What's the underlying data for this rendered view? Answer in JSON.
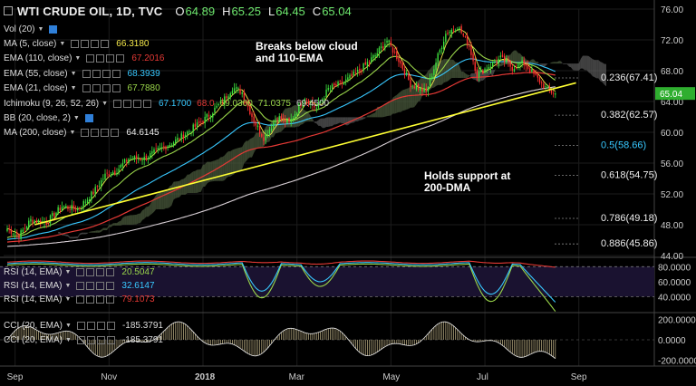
{
  "header": {
    "symbol": "WTI CRUDE OIL, 1D, TVC",
    "open_label": "O",
    "open": "64.89",
    "high_label": "H",
    "high": "65.25",
    "low_label": "L",
    "low": "64.45",
    "close_label": "C",
    "close": "65.04"
  },
  "indicators": [
    {
      "label": "Vol (20)",
      "value": "",
      "color": "#dddddd",
      "blue_box": true
    },
    {
      "label": "MA (5, close)",
      "value": "66.3180",
      "color": "#f5e84a"
    },
    {
      "label": "EMA (110, close)",
      "value": "67.2016",
      "color": "#e53935"
    },
    {
      "label": "EMA (55, close)",
      "value": "68.3939",
      "color": "#38c8ff"
    },
    {
      "label": "EMA (21, close)",
      "value": "67.7880",
      "color": "#9ad64a"
    },
    {
      "label": "Ichimoku (9, 26, 52, 26)",
      "value": "",
      "color": "#dddddd",
      "extra_values": [
        "67.1700",
        "68.0",
        "69.0300",
        "71.0375",
        "69.4500"
      ],
      "extra_colors": [
        "#38c8ff",
        "#e53935",
        "#9ad64a",
        "#9ad64a",
        "#cccccc"
      ]
    },
    {
      "label": "BB (20, close, 2)",
      "value": "",
      "color": "#dddddd",
      "blue_box": true
    },
    {
      "label": "MA (200, close)",
      "value": "64.6145",
      "color": "#eeeeee"
    }
  ],
  "annotations": {
    "top": [
      "Breaks below cloud",
      "and 110-EMA"
    ],
    "bottom": [
      "Holds support at",
      "200-DMA"
    ]
  },
  "price_badge": "65.04",
  "fibonacci": [
    {
      "label": "0.236(67.41)",
      "value": 67.41,
      "color": "#eeeeee"
    },
    {
      "label": "0.382(62.57)",
      "value": 62.57,
      "color": "#eeeeee"
    },
    {
      "label": "0.5(58.66)",
      "value": 58.66,
      "color": "#38c8ff"
    },
    {
      "label": "0.618(54.75)",
      "value": 54.75,
      "color": "#eeeeee"
    },
    {
      "label": "0.786(49.18)",
      "value": 49.18,
      "color": "#eeeeee"
    },
    {
      "label": "0.886(45.86)",
      "value": 45.86,
      "color": "#eeeeee"
    }
  ],
  "rsi_panel": {
    "rows": [
      {
        "label": "RSI (14, EMA)",
        "value": "20.5047",
        "color": "#9ad64a"
      },
      {
        "label": "RSI (14, EMA)",
        "value": "32.6147",
        "color": "#38c8ff"
      },
      {
        "label": "RSI (14, EMA)",
        "value": "79.1073",
        "color": "#e53935"
      }
    ],
    "axis_labels": [
      "80.0000",
      "60.0000",
      "40.0000"
    ]
  },
  "cci_panel": {
    "rows": [
      {
        "label": "CCI (20, EMA)",
        "value": "-185.3791",
        "color": "#dddddd"
      },
      {
        "label": "CCI (20, EMA)",
        "value": "-185.3791",
        "color": "#dddddd"
      }
    ],
    "axis_labels": [
      "200.0000",
      "0.0000",
      "-200.0000"
    ]
  },
  "chart_data": {
    "type": "candlestick",
    "title": "WTI CRUDE OIL, 1D, TVC",
    "ylim": [
      44,
      76
    ],
    "y_ticks": [
      "76.00",
      "72.00",
      "68.00",
      "64.00",
      "60.00",
      "56.00",
      "52.00",
      "48.00",
      "44.00"
    ],
    "y_tick_values": [
      76,
      72,
      68,
      64,
      60,
      56,
      52,
      48,
      44
    ],
    "x_ticks": [
      "Sep",
      "Nov",
      "2018",
      "Mar",
      "May",
      "Jul",
      "Sep"
    ],
    "x_tick_index": [
      4,
      52,
      100,
      148,
      196,
      244,
      292
    ],
    "bars_shown": 280,
    "price_path": [
      [
        0,
        47.5
      ],
      [
        6,
        46.6
      ],
      [
        12,
        48.6
      ],
      [
        20,
        48.3
      ],
      [
        28,
        50.4
      ],
      [
        36,
        50.0
      ],
      [
        44,
        52.2
      ],
      [
        50,
        54.4
      ],
      [
        56,
        55.1
      ],
      [
        62,
        56.6
      ],
      [
        70,
        56.6
      ],
      [
        78,
        57.8
      ],
      [
        86,
        58.9
      ],
      [
        92,
        60.0
      ],
      [
        100,
        61.5
      ],
      [
        110,
        64.0
      ],
      [
        115,
        65.8
      ],
      [
        120,
        65.2
      ],
      [
        126,
        61.5
      ],
      [
        131,
        59.3
      ],
      [
        138,
        62.0
      ],
      [
        144,
        61.2
      ],
      [
        152,
        64.6
      ],
      [
        158,
        63.1
      ],
      [
        164,
        65.6
      ],
      [
        172,
        66.5
      ],
      [
        180,
        68.0
      ],
      [
        188,
        70.0
      ],
      [
        194,
        71.9
      ],
      [
        200,
        69.4
      ],
      [
        206,
        66.3
      ],
      [
        214,
        65.2
      ],
      [
        220,
        69.9
      ],
      [
        224,
        72.8
      ],
      [
        230,
        73.8
      ],
      [
        236,
        71.2
      ],
      [
        240,
        67.5
      ],
      [
        246,
        68.6
      ],
      [
        252,
        69.6
      ],
      [
        258,
        68.4
      ],
      [
        264,
        69.0
      ],
      [
        270,
        67.2
      ],
      [
        276,
        65.5
      ],
      [
        280,
        65.04
      ]
    ],
    "series": [
      {
        "name": "MA (5, close)",
        "value": 66.318
      },
      {
        "name": "EMA (110, close)",
        "value": 67.2016
      },
      {
        "name": "EMA (55, close)",
        "value": 68.3939
      },
      {
        "name": "EMA (21, close)",
        "value": 67.788
      },
      {
        "name": "MA (200, close)",
        "value": 64.6145
      }
    ],
    "trendline": {
      "from": [
        14,
        48.0
      ],
      "to": [
        285,
        66.3
      ]
    },
    "rsi": {
      "ylim": [
        20,
        90
      ],
      "last": [
        20.5047,
        32.6147,
        79.1073
      ]
    },
    "cci": {
      "ylim": [
        -260,
        260
      ],
      "last": -185.3791
    }
  }
}
